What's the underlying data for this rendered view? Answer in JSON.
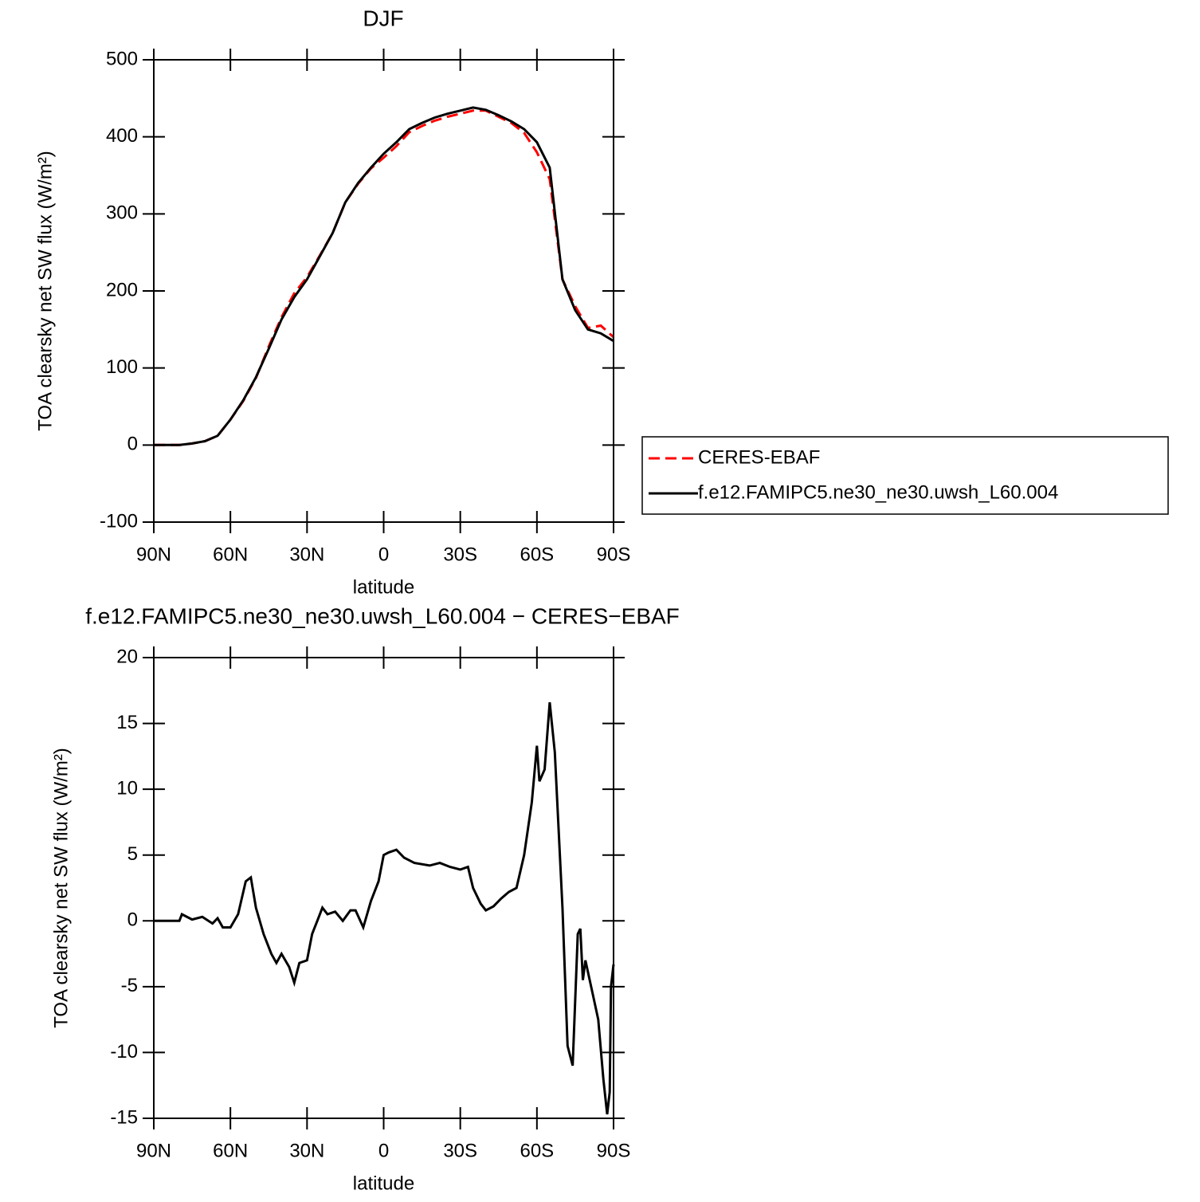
{
  "chart_data": [
    {
      "type": "line",
      "title": "DJF",
      "xlabel": "latitude",
      "ylabel": "TOA clearsky net SW flux (W/m²)",
      "x": [
        90,
        85,
        80,
        75,
        70,
        65,
        60,
        55,
        50,
        45,
        40,
        35,
        30,
        25,
        20,
        15,
        10,
        5,
        0,
        -5,
        -10,
        -15,
        -20,
        -25,
        -30,
        -35,
        -40,
        -45,
        -50,
        -55,
        -60,
        -65,
        -70,
        -75,
        -80,
        -85,
        -90
      ],
      "series": [
        {
          "name": "CERES-EBAF",
          "color": "#ff0000",
          "line_style": "dashed",
          "values": [
            0,
            0,
            0,
            2,
            5,
            12,
            33,
            57,
            87,
            128,
            166,
            197,
            218,
            246,
            275,
            315,
            339,
            359,
            373,
            388,
            406,
            414,
            421,
            426,
            430,
            434,
            434,
            426,
            418,
            405,
            380,
            345,
            215,
            180,
            152,
            155,
            140
          ]
        },
        {
          "name": "f.e12.FAMIPC5.ne30_ne30.uwsh_L60.004",
          "color": "#000000",
          "line_style": "solid",
          "values": [
            0,
            0,
            0,
            2,
            5,
            12,
            33,
            58,
            88,
            125,
            163,
            192,
            215,
            245,
            275,
            315,
            340,
            360,
            378,
            393,
            410,
            418,
            425,
            430,
            434,
            438,
            435,
            428,
            420,
            410,
            393,
            360,
            215,
            175,
            150,
            145,
            135
          ]
        }
      ],
      "xlim": [
        90,
        -90
      ],
      "xticks": [
        {
          "value": 90,
          "label": "90N"
        },
        {
          "value": 60,
          "label": "60N"
        },
        {
          "value": 30,
          "label": "30N"
        },
        0,
        {
          "value": -30,
          "label": "30S"
        },
        {
          "value": -60,
          "label": "60S"
        },
        {
          "value": -90,
          "label": "90S"
        }
      ],
      "ylim": [
        -100,
        500
      ],
      "yticks": [
        -100,
        0,
        100,
        200,
        300,
        400,
        500
      ],
      "legend": "right"
    },
    {
      "type": "line",
      "title": "f.e12.FAMIPC5.ne30_ne30.uwsh_L60.004 − CERES−EBAF",
      "xlabel": "latitude",
      "ylabel": "TOA clearsky net SW flux (W/m²)",
      "x": [
        90,
        80,
        79,
        75,
        71,
        67,
        65,
        63,
        60,
        57,
        54,
        52,
        50,
        47,
        44,
        42,
        40,
        37,
        35,
        33,
        30,
        28,
        26,
        24,
        22,
        19,
        16,
        13,
        11,
        8,
        5,
        2,
        0,
        -2,
        -5,
        -8,
        -12,
        -18,
        -22,
        -26,
        -30,
        -33,
        -35,
        -38,
        -40,
        -43,
        -46,
        -49,
        -52,
        -55,
        -58,
        -60,
        -61,
        -63,
        -65,
        -67,
        -70,
        -72,
        -74,
        -76,
        -77,
        -78,
        -79,
        -82,
        -84,
        -86,
        -87.5,
        -88.5,
        -89,
        -90
      ],
      "series": [
        {
          "color": "#000000",
          "line_style": "solid",
          "values": [
            0,
            0,
            0.5,
            0.1,
            0.3,
            -0.2,
            0.2,
            -0.5,
            -0.5,
            0.5,
            3,
            3.3,
            1,
            -1,
            -2.5,
            -3.2,
            -2.5,
            -3.5,
            -4.7,
            -3.2,
            -3,
            -1,
            0,
            1,
            0.5,
            0.7,
            0,
            0.8,
            0.8,
            -0.5,
            1.5,
            3,
            5,
            5.2,
            5.4,
            4.8,
            4.4,
            4.2,
            4.4,
            4.1,
            3.9,
            4.1,
            2.5,
            1.3,
            0.8,
            1.1,
            1.7,
            2.2,
            2.5,
            5,
            9,
            13.3,
            10.6,
            11.5,
            16.6,
            12.8,
            1,
            -9.5,
            -11,
            -1,
            -0.6,
            -4.5,
            -3,
            -5.7,
            -7.5,
            -12,
            -14.7,
            -13,
            -5,
            -3.3
          ]
        }
      ],
      "xlim": [
        90,
        -90
      ],
      "xticks": [
        {
          "value": 90,
          "label": "90N"
        },
        {
          "value": 60,
          "label": "60N"
        },
        {
          "value": 30,
          "label": "30N"
        },
        0,
        {
          "value": -30,
          "label": "30S"
        },
        {
          "value": -60,
          "label": "60S"
        },
        {
          "value": -90,
          "label": "90S"
        }
      ],
      "ylim": [
        -15,
        20
      ],
      "yticks": [
        -15,
        -10,
        -5,
        0,
        5,
        10,
        15,
        20
      ]
    }
  ]
}
